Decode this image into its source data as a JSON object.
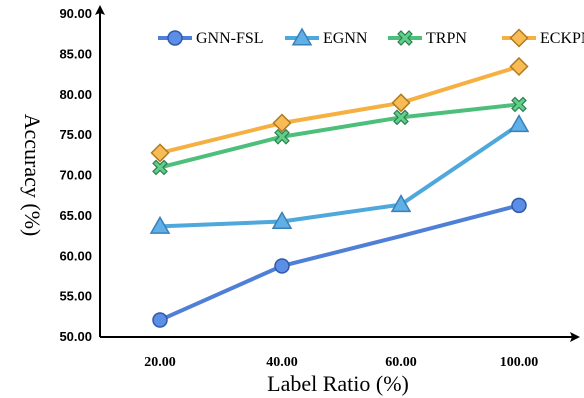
{
  "chart_data": {
    "type": "line",
    "title": "",
    "xlabel": "Label Ratio (%)",
    "ylabel": "Accuracy (%)",
    "categories": [
      "20.00",
      "40.00",
      "60.00",
      "100.00"
    ],
    "ylim": [
      50,
      90
    ],
    "yticks": [
      "50.00",
      "55.00",
      "60.00",
      "65.00",
      "70.00",
      "75.00",
      "80.00",
      "85.00",
      "90.00"
    ],
    "grid": false,
    "legend_position": "top",
    "series": [
      {
        "name": "GNN-FSL",
        "values": [
          52.1,
          58.8,
          62.5,
          66.3
        ],
        "color": "#4f7fd6",
        "marker": "circle",
        "fill": "#5b8ee6",
        "markerOn": [
          true,
          true,
          false,
          true
        ]
      },
      {
        "name": "EGNN",
        "values": [
          63.7,
          64.3,
          66.4,
          76.3
        ],
        "color": "#4ea8dc",
        "marker": "triangle",
        "fill": "#5eb0e6",
        "markerOn": [
          true,
          true,
          true,
          true
        ]
      },
      {
        "name": "TRPN",
        "values": [
          71.0,
          74.8,
          77.2,
          78.8
        ],
        "color": "#4cbf7a",
        "marker": "x",
        "fill": "#5fcf8a",
        "markerOn": [
          true,
          true,
          true,
          true
        ]
      },
      {
        "name": "ECKPN",
        "values": [
          72.8,
          76.5,
          79.0,
          83.5
        ],
        "color": "#f5b041",
        "marker": "diamond",
        "fill": "#f8bb55",
        "markerOn": [
          true,
          true,
          true,
          true
        ]
      }
    ]
  }
}
